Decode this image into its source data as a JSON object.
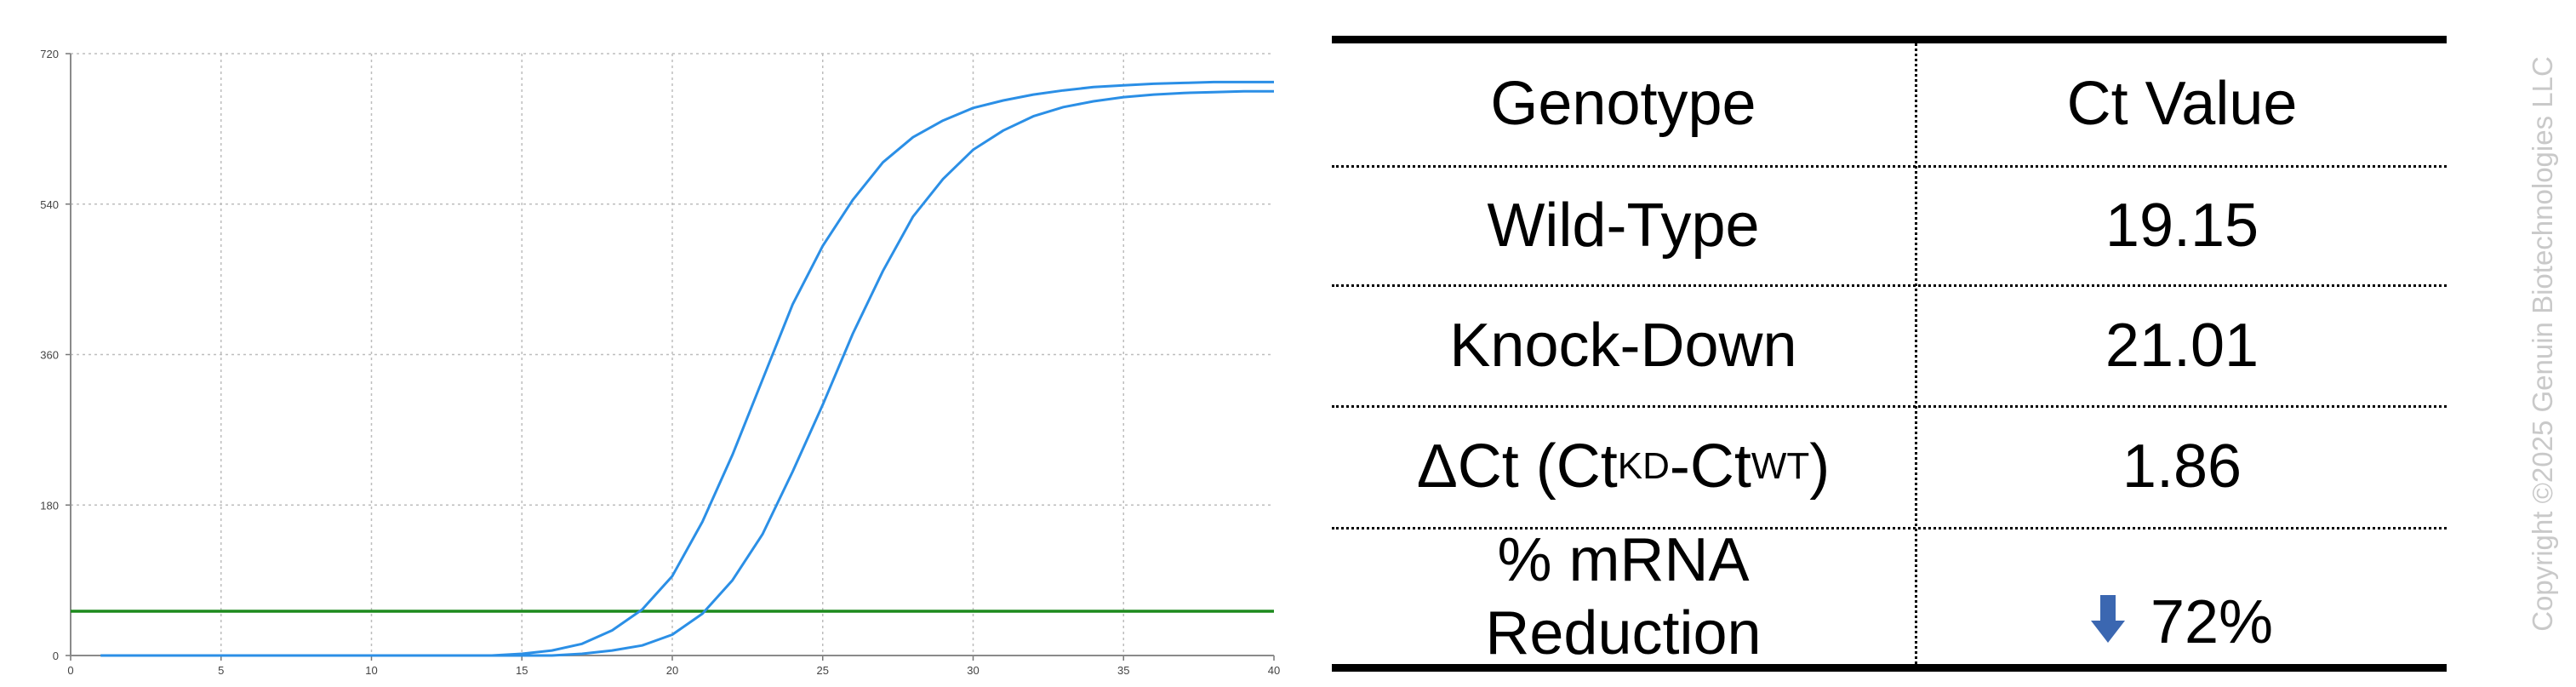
{
  "chart_data": {
    "type": "line",
    "xlim": [
      0,
      40
    ],
    "ylim": [
      0,
      720
    ],
    "x_ticks": [
      "0",
      "5",
      "10",
      "15",
      "20",
      "25",
      "30",
      "35",
      "40"
    ],
    "y_ticks": [
      "0",
      "180",
      "360",
      "540",
      "720"
    ],
    "grid": true,
    "series": [
      {
        "color": "#2b8fe6",
        "x": [
          1,
          14,
          15,
          16,
          17,
          18,
          19,
          20,
          21,
          22,
          23,
          24,
          25,
          26,
          27,
          28,
          29,
          30,
          31,
          32,
          33,
          34,
          35,
          36,
          37,
          38,
          39,
          40
        ],
        "y": [
          0,
          0,
          2,
          6,
          14,
          30,
          55,
          95,
          160,
          240,
          330,
          420,
          490,
          545,
          590,
          620,
          640,
          655,
          664,
          671,
          676,
          680,
          682,
          684,
          685,
          686,
          686,
          686
        ]
      },
      {
        "color": "#2b8fe6",
        "x": [
          1,
          16,
          17,
          18,
          19,
          20,
          21,
          22,
          23,
          24,
          25,
          26,
          27,
          28,
          29,
          30,
          31,
          32,
          33,
          34,
          35,
          36,
          37,
          38,
          39,
          40
        ],
        "y": [
          0,
          0,
          2,
          6,
          12,
          25,
          50,
          90,
          145,
          220,
          300,
          385,
          460,
          525,
          570,
          605,
          628,
          645,
          656,
          663,
          668,
          671,
          673,
          674,
          675,
          675
        ]
      }
    ],
    "threshold": {
      "y": 53,
      "color": "#1d8a1d"
    }
  },
  "table": {
    "header": {
      "genotype": "Genotype",
      "ct": "Ct Value"
    },
    "rows": {
      "wt": {
        "genotype": "Wild-Type",
        "ct": "19.15"
      },
      "kd": {
        "genotype": "Knock-Down",
        "ct": "21.01"
      },
      "dct": {
        "prefix": "ΔCt (Ct",
        "sub1": "KD",
        "mid": "-Ct",
        "sub2": "WT",
        "suffix": ")",
        "ct": "1.86"
      },
      "reduction": {
        "line1": "% mRNA",
        "line2": "Reduction",
        "ct": "72%",
        "arrow_icon": "down-arrow",
        "arrow_color": "#3b67b1"
      }
    }
  },
  "watermark": "Copyright ©2025 Genuin Biotechnologies LLC"
}
